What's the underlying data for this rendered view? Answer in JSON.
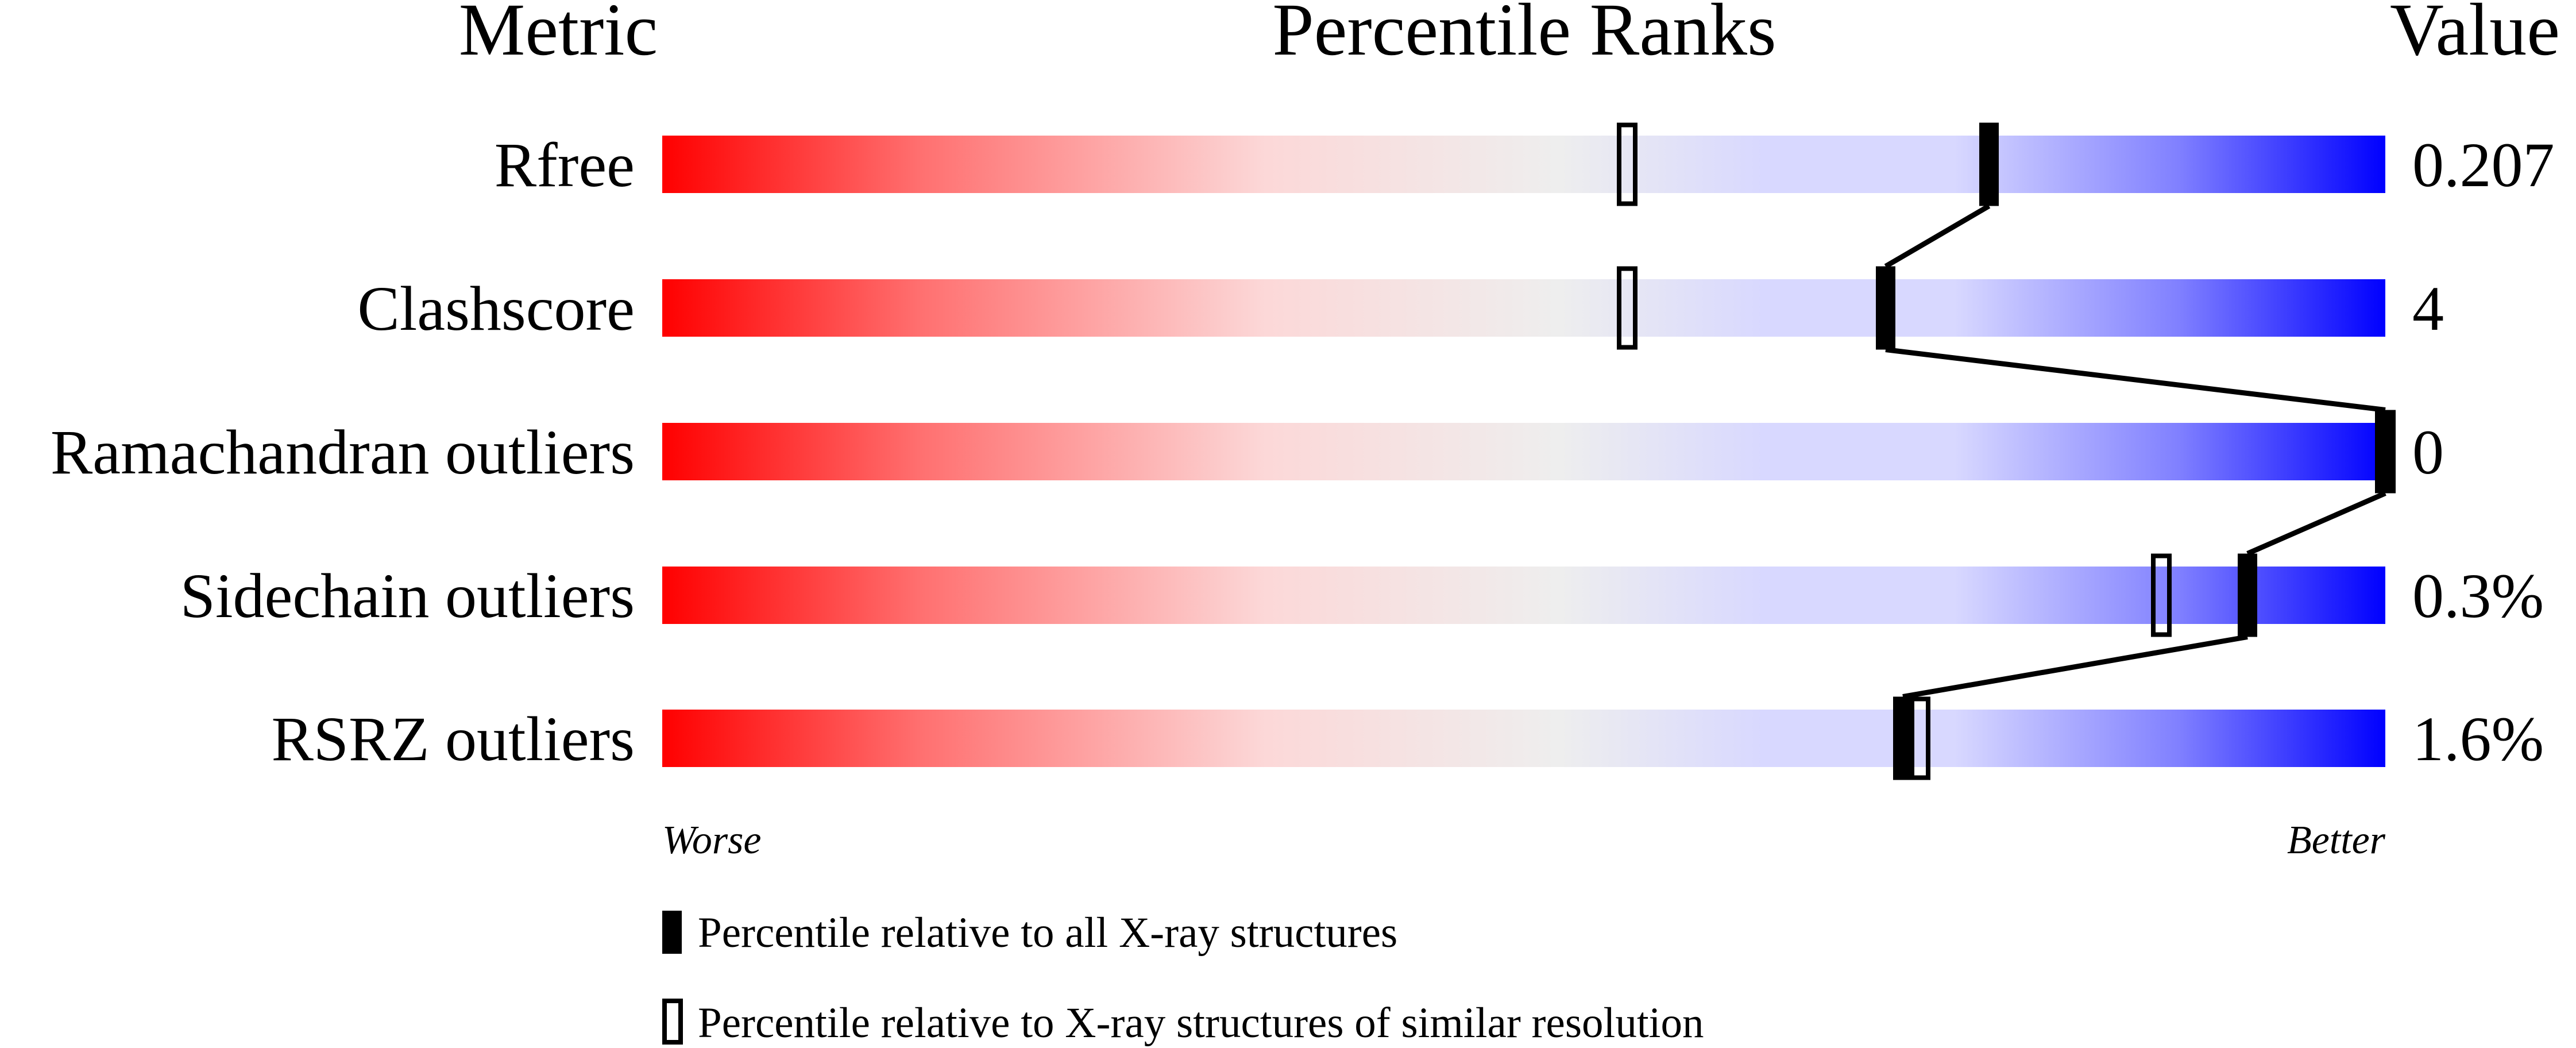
{
  "chart_data": {
    "type": "percentile-bar",
    "headers": {
      "metric": "Metric",
      "percentile": "Percentile Ranks",
      "value": "Value"
    },
    "xlim": [
      0,
      100
    ],
    "metrics": [
      {
        "name": "Rfree",
        "value": "0.207",
        "percentile_all": 77,
        "percentile_similar": 56
      },
      {
        "name": "Clashscore",
        "value": "4",
        "percentile_all": 71,
        "percentile_similar": 56
      },
      {
        "name": "Ramachandran outliers",
        "value": "0",
        "percentile_all": 100,
        "percentile_similar": 100
      },
      {
        "name": "Sidechain outliers",
        "value": "0.3%",
        "percentile_all": 92,
        "percentile_similar": 87
      },
      {
        "name": "RSRZ outliers",
        "value": "1.6%",
        "percentile_all": 72,
        "percentile_similar": 73
      }
    ],
    "axis_labels": {
      "worse": "Worse",
      "better": "Better"
    },
    "legend": {
      "all": "Percentile relative to all X-ray structures",
      "similar": "Percentile relative to X-ray structures of similar resolution"
    },
    "gradient_colors": [
      "#ff0000",
      "#ff7070",
      "#fcd8d8",
      "#eeeeee",
      "#d8d8ff",
      "#d8d8ff",
      "#8080ff",
      "#0000ff"
    ]
  }
}
